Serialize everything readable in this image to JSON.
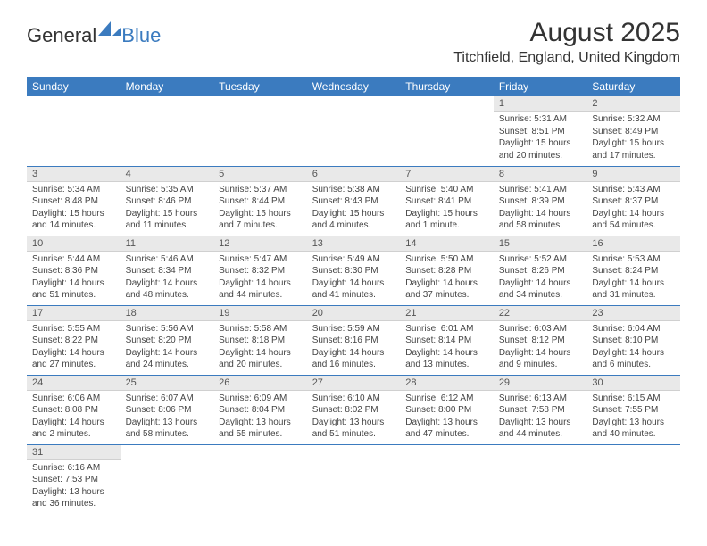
{
  "logo": {
    "general": "General",
    "blue": "Blue"
  },
  "title": "August 2025",
  "location": "Titchfield, England, United Kingdom",
  "colors": {
    "header_bg": "#3b7bbf",
    "header_fg": "#ffffff",
    "daynum_bg": "#e9e9e9",
    "row_border": "#3b7bbf",
    "page_bg": "#ffffff"
  },
  "weekdays": [
    "Sunday",
    "Monday",
    "Tuesday",
    "Wednesday",
    "Thursday",
    "Friday",
    "Saturday"
  ],
  "weeks": [
    [
      null,
      null,
      null,
      null,
      null,
      {
        "n": "1",
        "sr": "5:31 AM",
        "ss": "8:51 PM",
        "dl": "15 hours and 20 minutes."
      },
      {
        "n": "2",
        "sr": "5:32 AM",
        "ss": "8:49 PM",
        "dl": "15 hours and 17 minutes."
      }
    ],
    [
      {
        "n": "3",
        "sr": "5:34 AM",
        "ss": "8:48 PM",
        "dl": "15 hours and 14 minutes."
      },
      {
        "n": "4",
        "sr": "5:35 AM",
        "ss": "8:46 PM",
        "dl": "15 hours and 11 minutes."
      },
      {
        "n": "5",
        "sr": "5:37 AM",
        "ss": "8:44 PM",
        "dl": "15 hours and 7 minutes."
      },
      {
        "n": "6",
        "sr": "5:38 AM",
        "ss": "8:43 PM",
        "dl": "15 hours and 4 minutes."
      },
      {
        "n": "7",
        "sr": "5:40 AM",
        "ss": "8:41 PM",
        "dl": "15 hours and 1 minute."
      },
      {
        "n": "8",
        "sr": "5:41 AM",
        "ss": "8:39 PM",
        "dl": "14 hours and 58 minutes."
      },
      {
        "n": "9",
        "sr": "5:43 AM",
        "ss": "8:37 PM",
        "dl": "14 hours and 54 minutes."
      }
    ],
    [
      {
        "n": "10",
        "sr": "5:44 AM",
        "ss": "8:36 PM",
        "dl": "14 hours and 51 minutes."
      },
      {
        "n": "11",
        "sr": "5:46 AM",
        "ss": "8:34 PM",
        "dl": "14 hours and 48 minutes."
      },
      {
        "n": "12",
        "sr": "5:47 AM",
        "ss": "8:32 PM",
        "dl": "14 hours and 44 minutes."
      },
      {
        "n": "13",
        "sr": "5:49 AM",
        "ss": "8:30 PM",
        "dl": "14 hours and 41 minutes."
      },
      {
        "n": "14",
        "sr": "5:50 AM",
        "ss": "8:28 PM",
        "dl": "14 hours and 37 minutes."
      },
      {
        "n": "15",
        "sr": "5:52 AM",
        "ss": "8:26 PM",
        "dl": "14 hours and 34 minutes."
      },
      {
        "n": "16",
        "sr": "5:53 AM",
        "ss": "8:24 PM",
        "dl": "14 hours and 31 minutes."
      }
    ],
    [
      {
        "n": "17",
        "sr": "5:55 AM",
        "ss": "8:22 PM",
        "dl": "14 hours and 27 minutes."
      },
      {
        "n": "18",
        "sr": "5:56 AM",
        "ss": "8:20 PM",
        "dl": "14 hours and 24 minutes."
      },
      {
        "n": "19",
        "sr": "5:58 AM",
        "ss": "8:18 PM",
        "dl": "14 hours and 20 minutes."
      },
      {
        "n": "20",
        "sr": "5:59 AM",
        "ss": "8:16 PM",
        "dl": "14 hours and 16 minutes."
      },
      {
        "n": "21",
        "sr": "6:01 AM",
        "ss": "8:14 PM",
        "dl": "14 hours and 13 minutes."
      },
      {
        "n": "22",
        "sr": "6:03 AM",
        "ss": "8:12 PM",
        "dl": "14 hours and 9 minutes."
      },
      {
        "n": "23",
        "sr": "6:04 AM",
        "ss": "8:10 PM",
        "dl": "14 hours and 6 minutes."
      }
    ],
    [
      {
        "n": "24",
        "sr": "6:06 AM",
        "ss": "8:08 PM",
        "dl": "14 hours and 2 minutes."
      },
      {
        "n": "25",
        "sr": "6:07 AM",
        "ss": "8:06 PM",
        "dl": "13 hours and 58 minutes."
      },
      {
        "n": "26",
        "sr": "6:09 AM",
        "ss": "8:04 PM",
        "dl": "13 hours and 55 minutes."
      },
      {
        "n": "27",
        "sr": "6:10 AM",
        "ss": "8:02 PM",
        "dl": "13 hours and 51 minutes."
      },
      {
        "n": "28",
        "sr": "6:12 AM",
        "ss": "8:00 PM",
        "dl": "13 hours and 47 minutes."
      },
      {
        "n": "29",
        "sr": "6:13 AM",
        "ss": "7:58 PM",
        "dl": "13 hours and 44 minutes."
      },
      {
        "n": "30",
        "sr": "6:15 AM",
        "ss": "7:55 PM",
        "dl": "13 hours and 40 minutes."
      }
    ],
    [
      {
        "n": "31",
        "sr": "6:16 AM",
        "ss": "7:53 PM",
        "dl": "13 hours and 36 minutes."
      },
      null,
      null,
      null,
      null,
      null,
      null
    ]
  ],
  "labels": {
    "sunrise": "Sunrise:",
    "sunset": "Sunset:",
    "daylight": "Daylight:"
  }
}
